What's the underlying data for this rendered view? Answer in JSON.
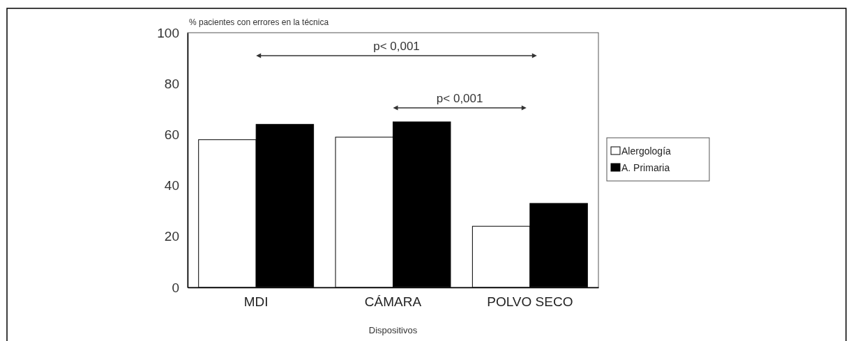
{
  "chart_data": {
    "type": "bar",
    "ylabel": "% pacientes con errores en la técnica",
    "xlabel": "Dispositivos",
    "categories": [
      "MDI",
      "CÁMARA",
      "POLVO SECO"
    ],
    "series": [
      {
        "name": "Alergología",
        "color": "#ffffff",
        "values": [
          58,
          59,
          24
        ]
      },
      {
        "name": "A. Primaria",
        "color": "#000000",
        "values": [
          64,
          65,
          33
        ]
      }
    ],
    "ylim": [
      0,
      100
    ],
    "yticks": [
      0,
      20,
      40,
      60,
      80,
      100
    ],
    "grid": false,
    "legend": "right",
    "annotations": [
      "p< 0,001",
      "p< 0,001"
    ]
  }
}
